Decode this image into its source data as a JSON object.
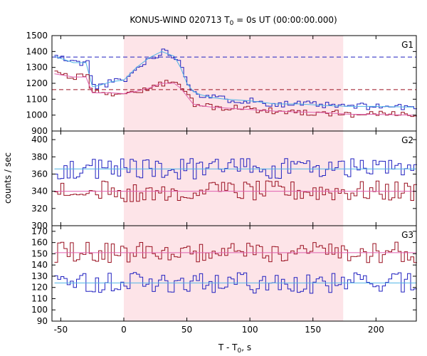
{
  "chart_data": {
    "type": "line",
    "title": "KONUS-WIND 020713 T",
    "title_sub": "0",
    "title_tail": " = 0s UT (00:00:00.000)",
    "xlabel": "T - T",
    "xlabel_sub": "0",
    "xlabel_tail": ", s",
    "ylabel": "counts / sec",
    "xlim": [
      -57,
      232
    ],
    "xticks": [
      -50,
      0,
      50,
      100,
      150,
      200
    ],
    "shaded_interval": [
      0,
      174
    ],
    "colors": {
      "series_blue": "#2020c0",
      "series_red": "#9a1020",
      "smooth_blue": "#4fb4e6",
      "smooth_red": "#e060b0",
      "shade": "#fde4e8",
      "axis": "#000000"
    },
    "panels": [
      {
        "label": "G1",
        "ylim": [
          900,
          1500
        ],
        "yticks": [
          900,
          1000,
          1100,
          1200,
          1300,
          1400,
          1500
        ],
        "reference_levels": [
          {
            "value": 1365,
            "color": "#2020c0"
          },
          {
            "value": 1160,
            "color": "#9a1020"
          }
        ],
        "series_blue": {
          "x": [
            -55,
            -40,
            -30,
            -25,
            -20,
            -10,
            0,
            10,
            20,
            30,
            40,
            45,
            50,
            55,
            60,
            70,
            80,
            100,
            120,
            140,
            160,
            180,
            200,
            230
          ],
          "y": [
            1370,
            1330,
            1330,
            1180,
            1185,
            1210,
            1220,
            1300,
            1360,
            1400,
            1370,
            1300,
            1200,
            1150,
            1130,
            1110,
            1100,
            1090,
            1070,
            1070,
            1060,
            1055,
            1055,
            1050
          ]
        },
        "series_red": {
          "x": [
            -55,
            -40,
            -30,
            -25,
            -20,
            -10,
            0,
            10,
            20,
            30,
            40,
            45,
            50,
            55,
            60,
            70,
            80,
            100,
            120,
            140,
            160,
            180,
            200,
            230
          ],
          "y": [
            1260,
            1240,
            1240,
            1140,
            1140,
            1140,
            1135,
            1150,
            1170,
            1200,
            1200,
            1170,
            1120,
            1070,
            1060,
            1050,
            1045,
            1035,
            1025,
            1020,
            1015,
            1005,
            1005,
            1000
          ]
        }
      },
      {
        "label": "G2",
        "ylim": [
          300,
          410
        ],
        "yticks": [
          300,
          320,
          340,
          360,
          380,
          400
        ],
        "reference_levels": [],
        "series_blue": {
          "x": [
            -55,
            232
          ],
          "y": [
            366,
            366
          ]
        },
        "series_red": {
          "x": [
            -55,
            232
          ],
          "y": [
            340,
            340
          ]
        }
      },
      {
        "label": "G3",
        "ylim": [
          90,
          175
        ],
        "yticks": [
          90,
          100,
          110,
          120,
          130,
          140,
          150,
          160,
          170
        ],
        "reference_levels": [],
        "series_blue": {
          "x": [
            -55,
            232
          ],
          "y": [
            124,
            124
          ]
        },
        "series_red": {
          "x": [
            -55,
            232
          ],
          "y": [
            151,
            151
          ]
        }
      }
    ]
  }
}
